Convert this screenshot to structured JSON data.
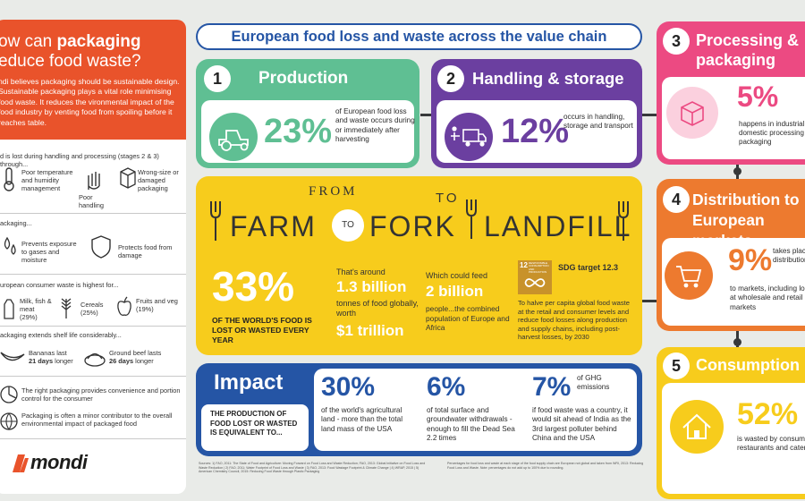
{
  "colors": {
    "orange": "#e9532b",
    "green": "#5fbf93",
    "purple": "#6b3fa0",
    "pink": "#ec4a82",
    "yellow": "#f7cc1c",
    "blue": "#2555a5",
    "sdg_brown": "#c8922a"
  },
  "left": {
    "title_pre": "ow can ",
    "title_bold": "packaging",
    "title_post": "educe food waste?",
    "intro": "ndi believes packaging should be sustainable design. Sustainable packaging plays a vital role minimising food waste. It reduces the vironmental impact of the food industry by venting food from spoiling before it reaches table.",
    "lost_intro": "d is lost during handling and processing (stages 2 & 3) through...",
    "causes": [
      "Poor temperature and humidity management",
      "Poor handling",
      "Wrong-size or damaged packaging"
    ],
    "packaging_head": "ackaging...",
    "prevents": "Prevents exposure to gases and moisture",
    "protects": "Protects food from damage",
    "consumer_head": "uropean consumer waste is highest for...",
    "consumer_items": [
      {
        "label": "Milk, fish & meat",
        "pct": "(29%)"
      },
      {
        "label": "Cereals",
        "pct": "(25%)"
      },
      {
        "label": "Fruits and veg",
        "pct": "(19%)"
      }
    ],
    "shelf_head": "ackaging extends shelf life considerably...",
    "bananas": "Bananas last",
    "bananas_days": "21 days",
    "bananas_suffix": " longer",
    "beef": "Ground beef lasts",
    "beef_days": "26 days",
    "beef_suffix": " longer",
    "note1": "The right packaging provides convenience and portion control for the consumer",
    "note2": "Packaging is often a minor contributor to the overall environmental impact of packaged food",
    "logo": "mondi"
  },
  "title": "European food loss and waste across the value chain",
  "stage1": {
    "num": "1",
    "title": "Production",
    "pct": "23%",
    "text": "of European food loss and waste occurs during or immediately after harvesting"
  },
  "stage2": {
    "num": "2",
    "title": "Handling & storage",
    "pct": "12%",
    "text": "occurs in handling, storage and transport"
  },
  "stage3": {
    "num": "3",
    "title": "Processing & packaging",
    "pct": "5%",
    "text": "happens in industrial or domestic processing and packaging"
  },
  "stage4": {
    "num": "4",
    "title": "Distribution to European markets",
    "pct": "9%",
    "text_a": "takes place in distribution",
    "text_b": "to markets, including losses at wholesale and retail markets"
  },
  "stage5": {
    "num": "5",
    "title": "Consumption",
    "pct": "52%",
    "text": "is wasted by consumers, restaurants and caterers"
  },
  "ftf": {
    "from": "FROM",
    "farm": "FARM",
    "to1": "TO",
    "fork": "FORK",
    "to2": "TO",
    "landfill": "LANDFILL",
    "pct": "33%",
    "pct_text": "OF THE WORLD'S FOOD IS LOST OR WASTED EVERY YEAR",
    "around": "That's around",
    "billion": "1.3 billion",
    "tonnes": "tonnes of food globally, worth",
    "trillion": "$1 trillion",
    "feed": "Which could feed",
    "feed_num": "2 billion",
    "feed_text": "people...the combined population of Europe and Africa",
    "sdg_badge_num": "12",
    "sdg_badge_text": "RESPONSIBLE CONSUMPTION AND PRODUCTION",
    "sdg_title": "SDG target 12.3",
    "sdg_text": "To halve per capita global food waste at the retail and consumer levels and reduce food losses along production and supply chains, including post-harvest losses, by 2030"
  },
  "impact": {
    "title": "Impact",
    "sub": "THE PRODUCTION OF FOOD LOST OR WASTED IS EQUIVALENT TO...",
    "items": [
      {
        "pct": "30%",
        "small": "",
        "text": "of the world's agricultural land - more than the total land mass of the USA"
      },
      {
        "pct": "6%",
        "small": "",
        "text": "of total surface and groundwater withdrawals - enough to fill the Dead Sea 2.2 times"
      },
      {
        "pct": "7%",
        "small": "of GHG emissions",
        "text": "if food waste was a country, it would sit ahead of India as the 3rd largest polluter behind China and the USA"
      }
    ]
  },
  "sources": "Sources: 1) FAO, 2011: The State of Food and Agriculture: Moving Forward on Food Loss and Waste Reduction; FAO, 2013: Global Initiative on Food Loss and Waste Reduction | 2) FAO, 2011; Water Footprint of Food Loss and Waste | 3) FAO, 2013: Food Wastage Footprint & Climate Change | 4) WRAP, 2015 | 5) American Chemistry Council, 2015: Reducing Food Waste through Plastic Packaging",
  "footnote": "Percentages for food loss and waste at each stage of the food supply chain are European not global and taken from WRI, 2013: Reducing Food Loss and Waste. Note: percentages do not add up to 100% due to rounding."
}
